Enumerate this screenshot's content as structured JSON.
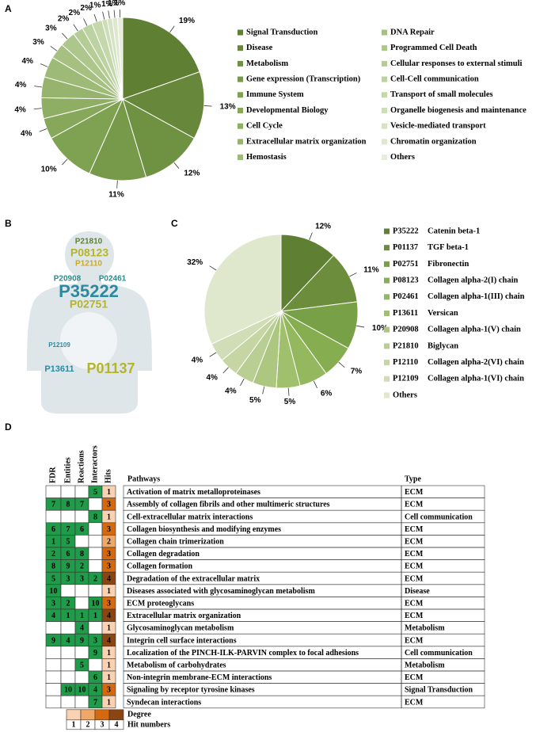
{
  "panel_labels": [
    "A",
    "B",
    "C",
    "D"
  ],
  "chart_data": [
    {
      "type": "pie",
      "categories": [
        "Signal Transduction",
        "Disease",
        "Metabolism",
        "Gene expression (Transcription)",
        "Immune System",
        "Developmental Biology",
        "Cell Cycle",
        "Extracellular matrix organization",
        "Hemostasis",
        "DNA Repair",
        "Programmed Cell Death",
        "Cellular responses to external stimuli",
        "Cell-Cell communication",
        "Transport of small molecules",
        "Organelle biogenesis and maintenance",
        "Vesicle-mediated transport",
        "Chromatin organization",
        "Others"
      ],
      "values": [
        19,
        13,
        12,
        11,
        10,
        4,
        4,
        4,
        4,
        3,
        3,
        2,
        2,
        2,
        1,
        1,
        1,
        1
      ],
      "value_labels": [
        "19%",
        "13%",
        "12%",
        "11%",
        "10%",
        "4%",
        "4%",
        "4%",
        "4%",
        "3%",
        "3%",
        "2%",
        "2%",
        "2%",
        "1%",
        "1%",
        "1%",
        "1%"
      ],
      "colors": [
        "#5f7f32",
        "#67883a",
        "#6f9142",
        "#77994a",
        "#7fa152",
        "#87a85b",
        "#8eae64",
        "#96b46d",
        "#9dba77",
        "#a5c081",
        "#adc68b",
        "#b5cc96",
        "#bdd2a1",
        "#c5d8ac",
        "#cdddb8",
        "#d5e3c3",
        "#dde8cf",
        "#e6eedb"
      ]
    },
    {
      "type": "pie",
      "codes": [
        "P35222",
        "P01137",
        "P02751",
        "P08123",
        "P02461",
        "P13611",
        "P20908",
        "P21810",
        "P12110",
        "P12109",
        null
      ],
      "categories": [
        "Catenin beta-1",
        "TGF beta-1",
        "Fibronectin",
        "Collagen alpha-2(I) chain",
        "Collagen alpha-1(III) chain",
        "Versican",
        "Collagen alpha-1(V) chain",
        "Biglycan",
        "Collagen alpha-2(VI) chain",
        "Collagen alpha-1(VI) chain",
        "Others"
      ],
      "values": [
        12,
        11,
        10,
        7,
        6,
        5,
        5,
        4,
        4,
        4,
        32
      ],
      "value_labels": [
        "12%",
        "11%",
        "10%",
        "7%",
        "6%",
        "5%",
        "5%",
        "4%",
        "4%",
        "4%",
        "32%"
      ],
      "colors": [
        "#5f7f32",
        "#6b8d3c",
        "#78a046",
        "#86ad50",
        "#93b85e",
        "#a0c06e",
        "#adc780",
        "#b9ce92",
        "#c5d6a4",
        "#d1ddb7",
        "#dfe7cc"
      ]
    }
  ],
  "wordcloud": {
    "words": [
      "P21810",
      "P08123",
      "P12110",
      "P20908",
      "P02461",
      "P35222",
      "P02751",
      "P12109",
      "P01137",
      "P13611"
    ]
  },
  "table": {
    "headers": [
      "FDR",
      "Entities",
      "Reactions",
      "Interactors",
      "Hits",
      "Pathways",
      "Type"
    ],
    "rows": [
      {
        "ranks": [
          null,
          null,
          null,
          5
        ],
        "hits": 1,
        "pathway": "Activation of matrix metalloproteinases",
        "type": "ECM"
      },
      {
        "ranks": [
          7,
          8,
          7,
          null
        ],
        "hits": 3,
        "pathway": "Assembly of collagen fibrils and other multimeric structures",
        "type": "ECM"
      },
      {
        "ranks": [
          null,
          null,
          null,
          8
        ],
        "hits": 1,
        "pathway": "Cell-extracellular matrix interactions",
        "type": "Cell communication"
      },
      {
        "ranks": [
          6,
          7,
          6,
          null
        ],
        "hits": 3,
        "pathway": "Collagen biosynthesis and modifying enzymes",
        "type": "ECM"
      },
      {
        "ranks": [
          1,
          5,
          null,
          null
        ],
        "hits": 2,
        "pathway": "Collagen chain trimerization",
        "type": "ECM"
      },
      {
        "ranks": [
          2,
          6,
          8,
          null
        ],
        "hits": 3,
        "pathway": "Collagen degradation",
        "type": "ECM"
      },
      {
        "ranks": [
          8,
          9,
          2,
          null
        ],
        "hits": 3,
        "pathway": "Collagen formation",
        "type": "ECM"
      },
      {
        "ranks": [
          5,
          3,
          3,
          2
        ],
        "hits": 4,
        "pathway": "Degradation of the extracellular matrix",
        "type": "ECM"
      },
      {
        "ranks": [
          10,
          null,
          null,
          null
        ],
        "hits": 1,
        "pathway": "Diseases associated with glycosaminoglycan metabolism",
        "type": "Disease"
      },
      {
        "ranks": [
          3,
          2,
          null,
          10
        ],
        "hits": 3,
        "pathway": "ECM proteoglycans",
        "type": "ECM"
      },
      {
        "ranks": [
          4,
          1,
          1,
          1
        ],
        "hits": 4,
        "pathway": "Extracellular matrix organization",
        "type": "ECM"
      },
      {
        "ranks": [
          null,
          null,
          4,
          null
        ],
        "hits": 1,
        "pathway": "Glycosaminoglycan metabolism",
        "type": "Metabolism"
      },
      {
        "ranks": [
          9,
          4,
          9,
          3
        ],
        "hits": 4,
        "pathway": "Integrin cell surface interactions",
        "type": "ECM"
      },
      {
        "ranks": [
          null,
          null,
          null,
          9
        ],
        "hits": 1,
        "pathway": "Localization of the PINCH-ILK-PARVIN complex to focal adhesions",
        "type": "Cell communication"
      },
      {
        "ranks": [
          null,
          null,
          5,
          null
        ],
        "hits": 1,
        "pathway": "Metabolism of carbohydrates",
        "type": "Metabolism"
      },
      {
        "ranks": [
          null,
          null,
          null,
          6
        ],
        "hits": 1,
        "pathway": "Non-integrin membrane-ECM interactions",
        "type": "ECM"
      },
      {
        "ranks": [
          null,
          10,
          10,
          4
        ],
        "hits": 3,
        "pathway": "Signaling by receptor tyrosine kinases",
        "type": "Signal Transduction"
      },
      {
        "ranks": [
          null,
          null,
          null,
          7
        ],
        "hits": 1,
        "pathway": "Syndecan interactions",
        "type": "ECM"
      }
    ],
    "rank_color": "#1f9b4a",
    "hit_colors": [
      "#f8d2b2",
      "#f0a868",
      "#d4690f",
      "#8b4513"
    ],
    "degree_label": "Degree",
    "hit_numbers_label": "Hit numbers",
    "hit_numbers": [
      1,
      2,
      3,
      4
    ]
  }
}
